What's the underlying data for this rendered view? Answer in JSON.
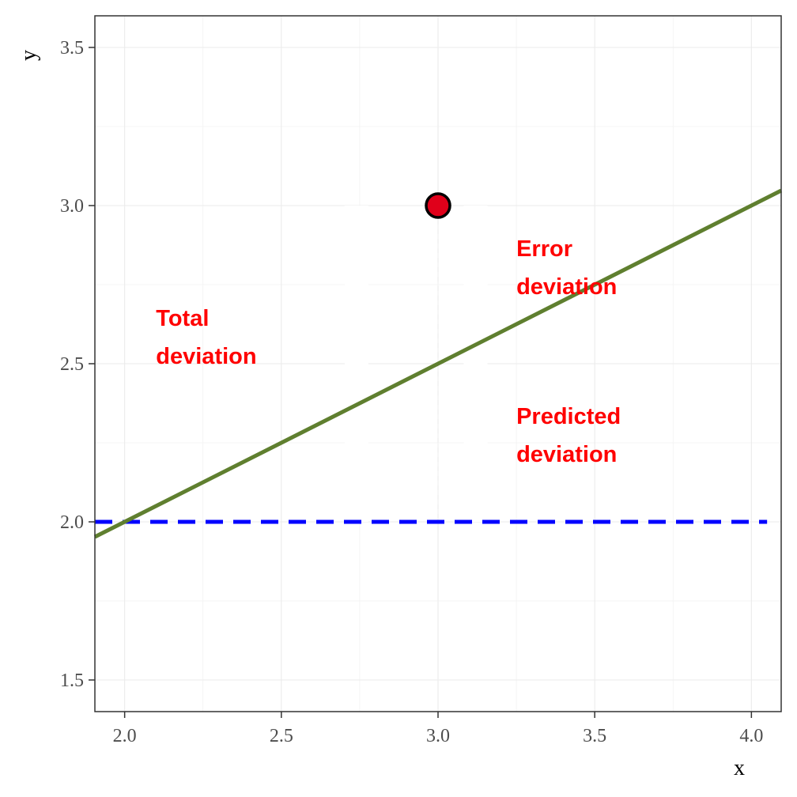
{
  "chart_data": {
    "type": "line",
    "xlabel": "x",
    "ylabel": "y",
    "xlim": [
      1.905,
      4.095
    ],
    "ylim": [
      1.4,
      3.6
    ],
    "x_ticks": [
      "2.0",
      "2.5",
      "3.0",
      "3.5",
      "4.0"
    ],
    "y_ticks": [
      "1.5",
      "2.0",
      "2.5",
      "3.0",
      "3.5"
    ],
    "grid": true,
    "point": {
      "x": 3.0,
      "y": 3.0,
      "fill": "#e0001a",
      "stroke": "#000000"
    },
    "regression_line": {
      "intercept": 1.0,
      "slope": 0.5,
      "color": "#5f7f2f"
    },
    "mean_line": {
      "y": 2.0,
      "color": "#0000ff",
      "style": "dashed"
    },
    "annotations": [
      {
        "lines": [
          "Total",
          "deviation"
        ],
        "x": 2.1,
        "y": 2.62,
        "color": "#ff0000"
      },
      {
        "lines": [
          "Error",
          "deviation"
        ],
        "x": 3.25,
        "y": 2.84,
        "color": "#ff0000"
      },
      {
        "lines": [
          "Predicted",
          "deviation"
        ],
        "x": 3.25,
        "y": 2.31,
        "color": "#ff0000"
      }
    ]
  }
}
